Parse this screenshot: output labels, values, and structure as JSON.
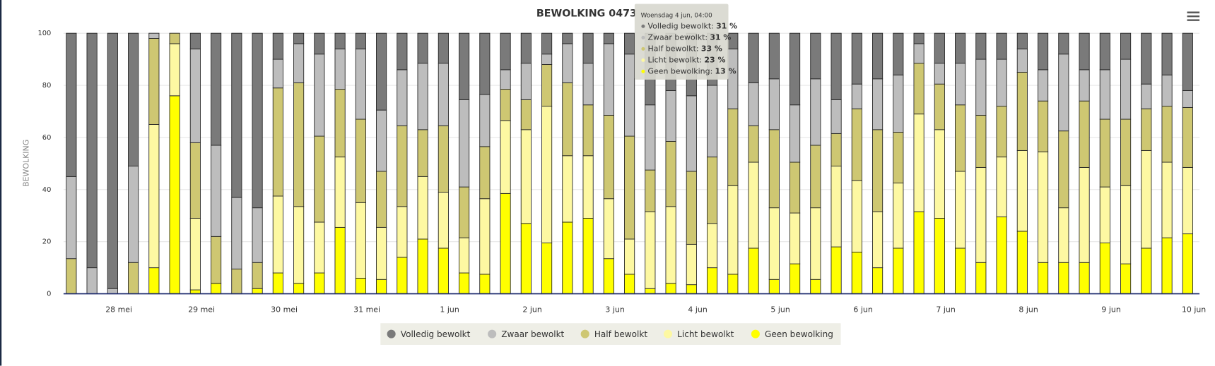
{
  "chart_data": {
    "type": "stacked_bar",
    "title": "BEWOLKING 0473 -",
    "ylabel": "BEWOLKING",
    "categories": [
      null,
      null,
      "28 mei",
      null,
      null,
      null,
      "29 mei",
      null,
      null,
      null,
      "30 mei",
      null,
      null,
      null,
      "31 mei",
      null,
      null,
      null,
      "1 jun",
      null,
      null,
      null,
      "2 jun",
      null,
      null,
      null,
      "3 jun",
      null,
      null,
      null,
      "4 jun",
      null,
      null,
      null,
      "5 jun",
      null,
      null,
      null,
      "6 jun",
      null,
      null,
      null,
      "7 jun",
      null,
      null,
      null,
      "8 jun",
      null,
      null,
      null,
      "9 jun",
      null,
      null,
      null,
      "10 jun"
    ],
    "ylim": [
      0,
      100
    ],
    "yticks": [
      0,
      20,
      40,
      60,
      80,
      100
    ],
    "grid": true,
    "series": [
      {
        "name": "Geen bewolking",
        "color": "#ffff00",
        "values": [
          0,
          0,
          0,
          0,
          10,
          76,
          1.5,
          4,
          0,
          2,
          8,
          4,
          8,
          25.5,
          6,
          5.5,
          14,
          21,
          17.5,
          8,
          7.5,
          38.5,
          27,
          19.5,
          27.5,
          29,
          13.5,
          7.5,
          2,
          4,
          3.5,
          10,
          7.5,
          17.5,
          5.5,
          11.5,
          5.5,
          18,
          16,
          10,
          17.5,
          31.5,
          29,
          17.5,
          12,
          29.5,
          24,
          12,
          12,
          12,
          19.5,
          11.5,
          17.5,
          21.5,
          23
        ]
      },
      {
        "name": "Licht bewolkt",
        "color": "#fdf8a2",
        "values": [
          0,
          0,
          0,
          0,
          55,
          20,
          27.5,
          0,
          0,
          0,
          29.5,
          29.5,
          19.5,
          27,
          29,
          20,
          19.5,
          24,
          21.5,
          13.5,
          29,
          28,
          36,
          52.5,
          25.5,
          24,
          23,
          13.5,
          29.5,
          29.5,
          15.5,
          17,
          34,
          33,
          27.5,
          19.5,
          27.5,
          31,
          27.5,
          21.5,
          25,
          37.5,
          34,
          29.5,
          36.5,
          23,
          31,
          42.5,
          21,
          36.5,
          21.5,
          30,
          37.5,
          29,
          25.5
        ]
      },
      {
        "name": "Half bewolkt",
        "color": "#cec772",
        "values": [
          13.5,
          0,
          0,
          12,
          33,
          4,
          29,
          18,
          9.5,
          10,
          41.5,
          47.5,
          33,
          26,
          32,
          21.5,
          31,
          18,
          25.5,
          19.5,
          20,
          12,
          11.5,
          16,
          28,
          19.5,
          32,
          39.5,
          16,
          25,
          28,
          25.5,
          29.5,
          14,
          30,
          19.5,
          24,
          12.5,
          27.5,
          31.5,
          19.5,
          19.5,
          17.5,
          25.5,
          20,
          19.5,
          30,
          19.5,
          29.5,
          25.5,
          26,
          25.5,
          16,
          21.5,
          23
        ]
      },
      {
        "name": "Zwaar bewolkt",
        "color": "#bdbdbd",
        "values": [
          31.5,
          10,
          2,
          37,
          2,
          0,
          36,
          35,
          27.5,
          21,
          11,
          15,
          31.5,
          15.5,
          27,
          23.5,
          21.5,
          25.5,
          24,
          33.5,
          20,
          7.5,
          14,
          4,
          15,
          16,
          27.5,
          31.5,
          25,
          19.5,
          29,
          27.5,
          23,
          16.5,
          19.5,
          22,
          25.5,
          13,
          9.5,
          19.5,
          22,
          7.5,
          8,
          16,
          21.5,
          18,
          9,
          12,
          29.5,
          12,
          19,
          23,
          9.5,
          12,
          6.5
        ]
      },
      {
        "name": "Volledig bewolkt",
        "color": "#7a7a7a",
        "values": [
          55,
          90,
          98,
          51,
          0,
          0,
          6,
          43,
          63,
          67,
          10,
          4,
          8,
          6,
          6,
          29.5,
          14,
          11.5,
          11.5,
          25.5,
          23.5,
          14,
          11.5,
          8,
          4,
          11.5,
          4,
          8,
          27.5,
          22,
          24,
          20,
          6,
          19,
          17.5,
          27.5,
          17.5,
          25.5,
          19.5,
          17.5,
          16,
          4,
          11.5,
          11.5,
          10,
          10,
          6,
          14,
          8,
          14,
          14,
          10,
          19.5,
          16,
          22
        ]
      }
    ],
    "tooltip": {
      "header": "Woensdag 4 jun, 04:00",
      "items": [
        {
          "name": "Volledig bewolkt:",
          "value": "31 %"
        },
        {
          "name": "Zwaar bewolkt:",
          "value": "31 %"
        },
        {
          "name": "Half bewolkt:",
          "value": "33 %"
        },
        {
          "name": "Licht bewolkt:",
          "value": "23 %"
        },
        {
          "name": "Geen bewolking:",
          "value": "13 %"
        }
      ]
    }
  }
}
